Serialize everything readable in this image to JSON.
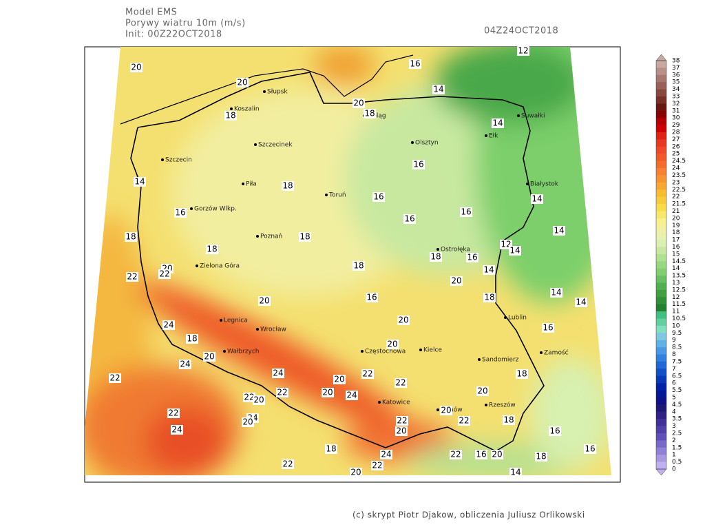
{
  "header": {
    "model": "Model EMS",
    "variable": "Porywy wiatru 10m (m/s)",
    "init": "Init: 00Z22OCT2018",
    "valid": "04Z24OCT2018"
  },
  "colorbar": {
    "labels": [
      38,
      37,
      36,
      35,
      34,
      33,
      32,
      31,
      30,
      29,
      28,
      27,
      26,
      25,
      24.5,
      24,
      23.5,
      23,
      22.5,
      22,
      21.5,
      21,
      20,
      19,
      18,
      17,
      16,
      15,
      14.5,
      14,
      13.5,
      13,
      12.5,
      12,
      11.5,
      11,
      10.5,
      10,
      9.5,
      9,
      8.5,
      8,
      7.5,
      7,
      6.5,
      6,
      5.5,
      5,
      4.5,
      4,
      3.5,
      3,
      2.5,
      2,
      1.5,
      1,
      0.5,
      0
    ],
    "colors": [
      "#c8a8a0",
      "#b89088",
      "#a87870",
      "#986058",
      "#884840",
      "#783028",
      "#681810",
      "#8b0000",
      "#b40000",
      "#d00000",
      "#e02010",
      "#e83820",
      "#f04828",
      "#f05a28",
      "#f46c28",
      "#f88030",
      "#f89430",
      "#f8a830",
      "#f8bc30",
      "#f8cc38",
      "#f8dc48",
      "#f8e868",
      "#f8f088",
      "#f0f0a0",
      "#e8f0b0",
      "#d8f0b0",
      "#c8e8a0",
      "#b0e090",
      "#98d880",
      "#80d070",
      "#68c060",
      "#50b050",
      "#40a040",
      "#309038",
      "#208030",
      "#40c080",
      "#60d0a0",
      "#80e0c0",
      "#80c8e0",
      "#60b0e8",
      "#4898e8",
      "#3080e0",
      "#2068d8",
      "#1050c8",
      "#0838b8",
      "#0020a8",
      "#001898",
      "#101088",
      "#201878",
      "#302088",
      "#403098",
      "#5040a8",
      "#6050b8",
      "#7868c8",
      "#9080d8",
      "#a898e0",
      "#c0b0f0"
    ]
  },
  "cities": [
    "Słupsk",
    "Koszalin",
    "Elbląg",
    "Suwałki",
    "Szczecinek",
    "Olsztyn",
    "Ełk",
    "Szczecin",
    "Piła",
    "Toruń",
    "Białystok",
    "Gorzów Wlkp.",
    "Poznań",
    "Ostrołęka",
    "Zielona Góra",
    "Legnica",
    "Wrocław",
    "Lublin",
    "Kielce",
    "Częstochowa",
    "Wałbrzych",
    "Sandomierz",
    "Zamość",
    "Katowice",
    "Tarnów",
    "Rzeszów"
  ],
  "contour_labels": [
    20,
    20,
    18,
    20,
    18,
    16,
    14,
    12,
    14,
    14,
    18,
    16,
    16,
    16,
    16,
    14,
    16,
    18,
    18,
    18,
    14,
    12,
    14,
    16,
    18,
    14,
    18,
    16,
    20,
    18,
    14,
    14,
    22,
    20,
    22,
    20,
    20,
    16,
    24,
    18,
    20,
    24,
    20,
    22,
    24,
    22,
    20,
    22,
    18,
    22,
    20,
    22,
    20,
    24,
    20,
    22,
    24,
    20,
    20,
    22,
    18,
    24,
    22,
    20,
    16,
    18,
    24,
    22,
    16,
    20,
    18,
    16,
    22,
    22,
    20,
    14
  ],
  "credit": "(c) skrypt Piotr Djakow, obliczenia Juliusz Orlikowski"
}
